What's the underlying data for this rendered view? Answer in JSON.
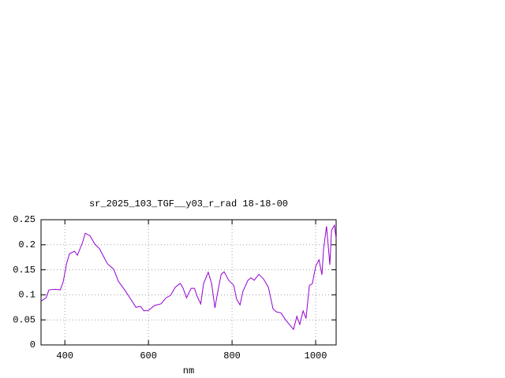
{
  "chart_data": {
    "type": "line",
    "title": "sr_2025_103_TGF__y03_r_rad 18-18-00",
    "xlabel": "nm",
    "xlim": [
      343,
      1049
    ],
    "xticks": [
      400,
      600,
      800,
      1000
    ],
    "ylim": [
      0,
      0.25
    ],
    "yticks": [
      0,
      0.05,
      0.1,
      0.15,
      0.2,
      0.25
    ],
    "grid": true,
    "series": [
      {
        "color": "#9400d3",
        "x": [
          344,
          355,
          362,
          377,
          389,
          396,
          404,
          411,
          423,
          430,
          442,
          449,
          460,
          472,
          483,
          491,
          502,
          517,
          528,
          543,
          558,
          570,
          581,
          589,
          600,
          615,
          630,
          642,
          653,
          664,
          676,
          683,
          691,
          702,
          710,
          717,
          725,
          732,
          743,
          751,
          759,
          766,
          774,
          781,
          792,
          804,
          811,
          819,
          826,
          838,
          845,
          853,
          864,
          875,
          887,
          898,
          906,
          917,
          928,
          940,
          947,
          955,
          962,
          970,
          977,
          985,
          992,
          1000,
          1008,
          1015,
          1019,
          1026,
          1034,
          1038,
          1045,
          1049
        ],
        "values": [
          0.088,
          0.094,
          0.11,
          0.111,
          0.11,
          0.126,
          0.162,
          0.182,
          0.187,
          0.179,
          0.204,
          0.223,
          0.218,
          0.201,
          0.192,
          0.179,
          0.162,
          0.151,
          0.127,
          0.11,
          0.091,
          0.075,
          0.077,
          0.068,
          0.069,
          0.079,
          0.082,
          0.094,
          0.099,
          0.115,
          0.123,
          0.113,
          0.094,
          0.113,
          0.113,
          0.096,
          0.082,
          0.123,
          0.145,
          0.123,
          0.074,
          0.107,
          0.141,
          0.146,
          0.129,
          0.119,
          0.091,
          0.08,
          0.107,
          0.129,
          0.134,
          0.129,
          0.141,
          0.132,
          0.115,
          0.072,
          0.066,
          0.064,
          0.05,
          0.038,
          0.031,
          0.057,
          0.041,
          0.068,
          0.053,
          0.119,
          0.122,
          0.157,
          0.17,
          0.14,
          0.192,
          0.237,
          0.16,
          0.229,
          0.239,
          0.212
        ]
      }
    ]
  }
}
